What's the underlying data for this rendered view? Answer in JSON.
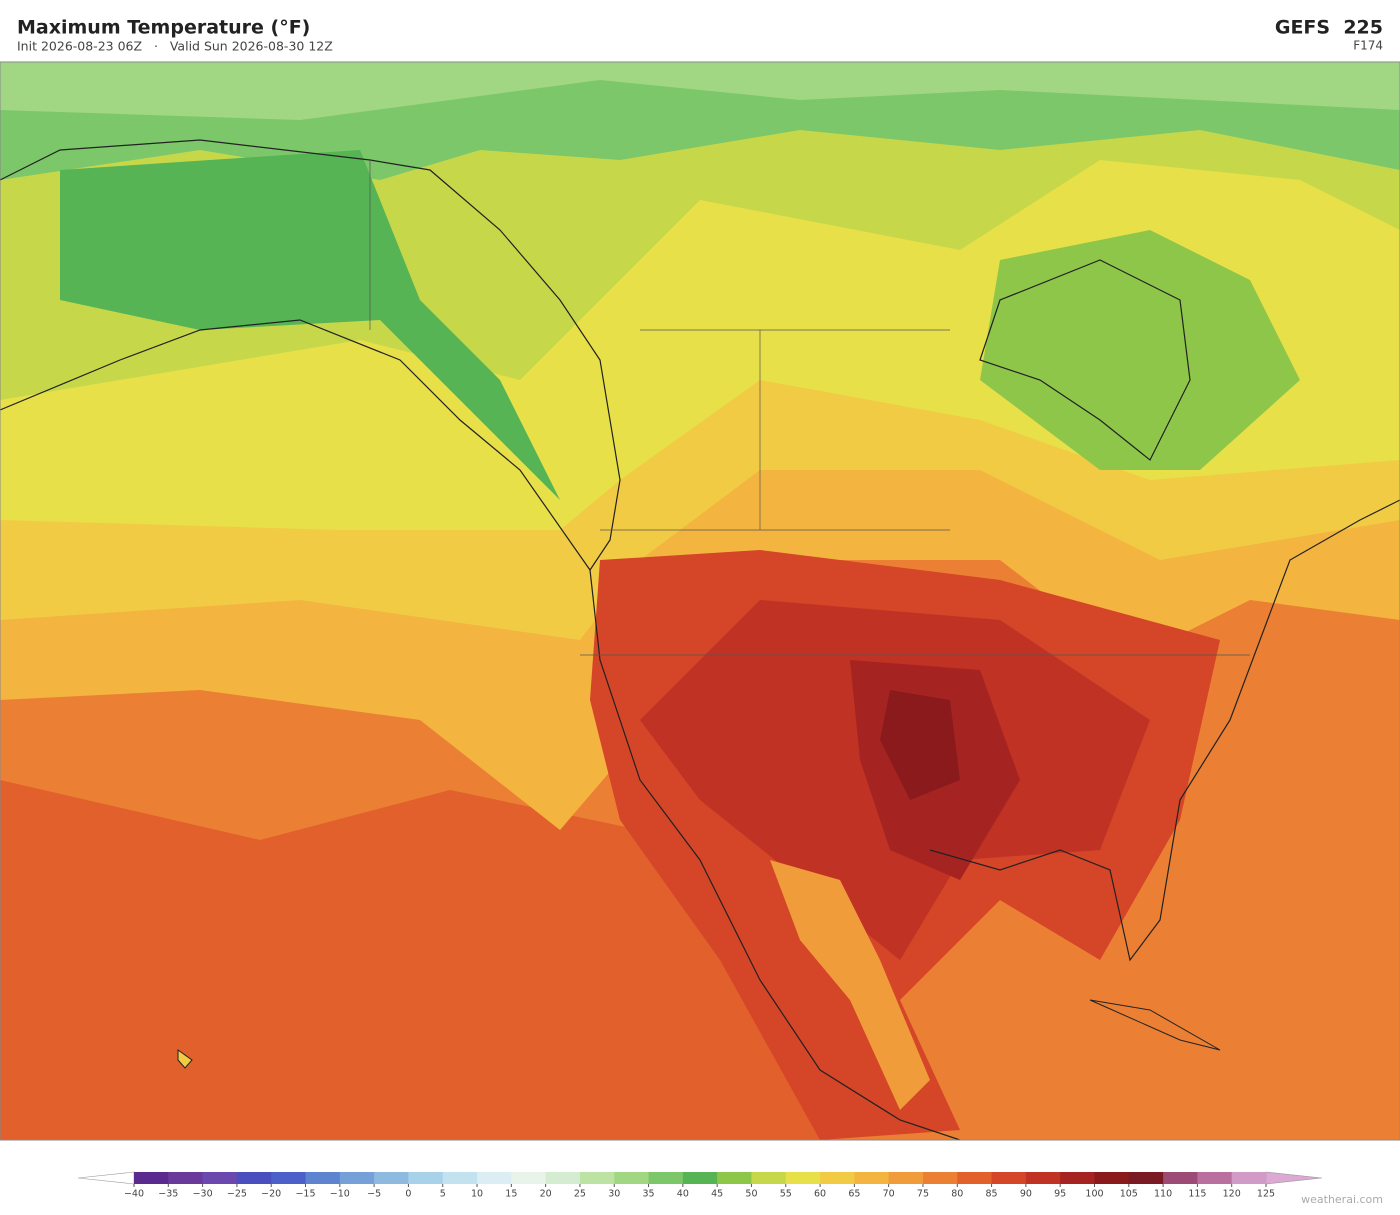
{
  "header": {
    "title": "Maximum Temperature  (°F)",
    "subtitle": "Init 2026-08-23 06Z   ·   Valid Sun 2026-08-30 12Z",
    "model": "GEFS  225",
    "forecast_hour": "F174"
  },
  "colorbar": {
    "labels": [
      "−40",
      "−35",
      "−30",
      "−25",
      "−20",
      "−15",
      "−10",
      "−5",
      "0",
      "5",
      "10",
      "15",
      "20",
      "25",
      "30",
      "35",
      "40",
      "45",
      "50",
      "55",
      "60",
      "65",
      "70",
      "75",
      "80",
      "85",
      "90",
      "95",
      "100",
      "105",
      "110",
      "115",
      "120",
      "125"
    ],
    "colors": [
      "#5b2a8e",
      "#6a3a9b",
      "#6b48ad",
      "#4a4fc0",
      "#4d5fc9",
      "#5e84cf",
      "#75a0d8",
      "#8fbae0",
      "#a8d2ea",
      "#c2e2ef",
      "#daeef3",
      "#e8f4ea",
      "#d4ecd0",
      "#bde3a4",
      "#a1d782",
      "#7cc76a",
      "#56b455",
      "#8ec64a",
      "#c6d84a",
      "#e8e048",
      "#f2cb45",
      "#f3b540",
      "#f09c3a",
      "#eb7f33",
      "#e2602c",
      "#d54528",
      "#c03224",
      "#a52421",
      "#8a1a1c",
      "#7a1a22",
      "#9c4a76",
      "#b9709f",
      "#d29ac6"
    ],
    "under_color": "#ffffff",
    "over_color": "#dca8d4"
  },
  "credit": "weatherai.com"
}
